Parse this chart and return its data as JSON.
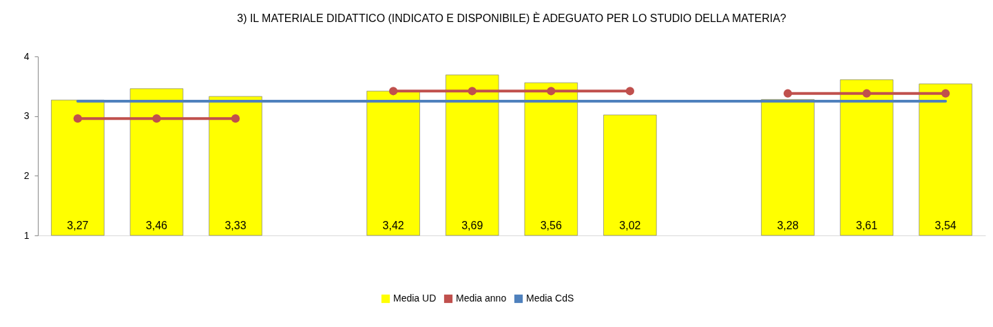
{
  "chart_data": {
    "type": "bar",
    "title": "3) IL MATERIALE DIDATTICO (INDICATO E DISPONIBILE) È ADEGUATO PER LO STUDIO DELLA MATERIA?",
    "categories": [
      null,
      null,
      null,
      null,
      null,
      null,
      null,
      null,
      null,
      null,
      null,
      null
    ],
    "ylim": [
      1,
      4
    ],
    "yticks": [
      1,
      2,
      3,
      4
    ],
    "grid": false,
    "legend": "bottom",
    "tick_labels": "y",
    "series": [
      {
        "name": "Media UD",
        "color": "#ffff00",
        "values": [
          3.27,
          3.46,
          3.33,
          null,
          3.42,
          3.69,
          3.56,
          3.02,
          null,
          3.28,
          3.61,
          3.54
        ],
        "value_labels": [
          "3,27",
          "3,46",
          "3,33",
          null,
          "3,42",
          "3,69",
          "3,56",
          "3,02",
          null,
          "3,28",
          "3,61",
          "3,54"
        ]
      },
      {
        "type": "line",
        "name": "Media anno",
        "color": "#c0504d",
        "marker": "circle",
        "values": [
          2.96,
          2.96,
          2.96,
          null,
          3.42,
          3.42,
          3.42,
          3.42,
          null,
          3.38,
          3.38,
          3.38
        ]
      },
      {
        "type": "line",
        "name": "Media CdS",
        "color": "#4f81bd",
        "marker": "none",
        "values": [
          3.25,
          3.25,
          3.25,
          3.25,
          3.25,
          3.25,
          3.25,
          3.25,
          3.25,
          3.25,
          3.25,
          3.25
        ]
      }
    ]
  }
}
